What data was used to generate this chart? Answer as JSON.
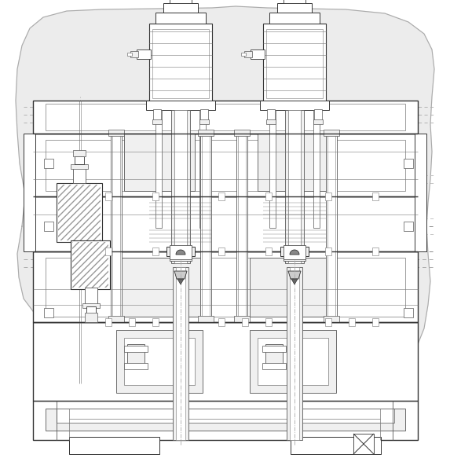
{
  "bg_color": "#ffffff",
  "lc": "#333333",
  "lc2": "#555555",
  "lc3": "#777777",
  "fig_width": 5.73,
  "fig_height": 5.88,
  "dpi": 100
}
